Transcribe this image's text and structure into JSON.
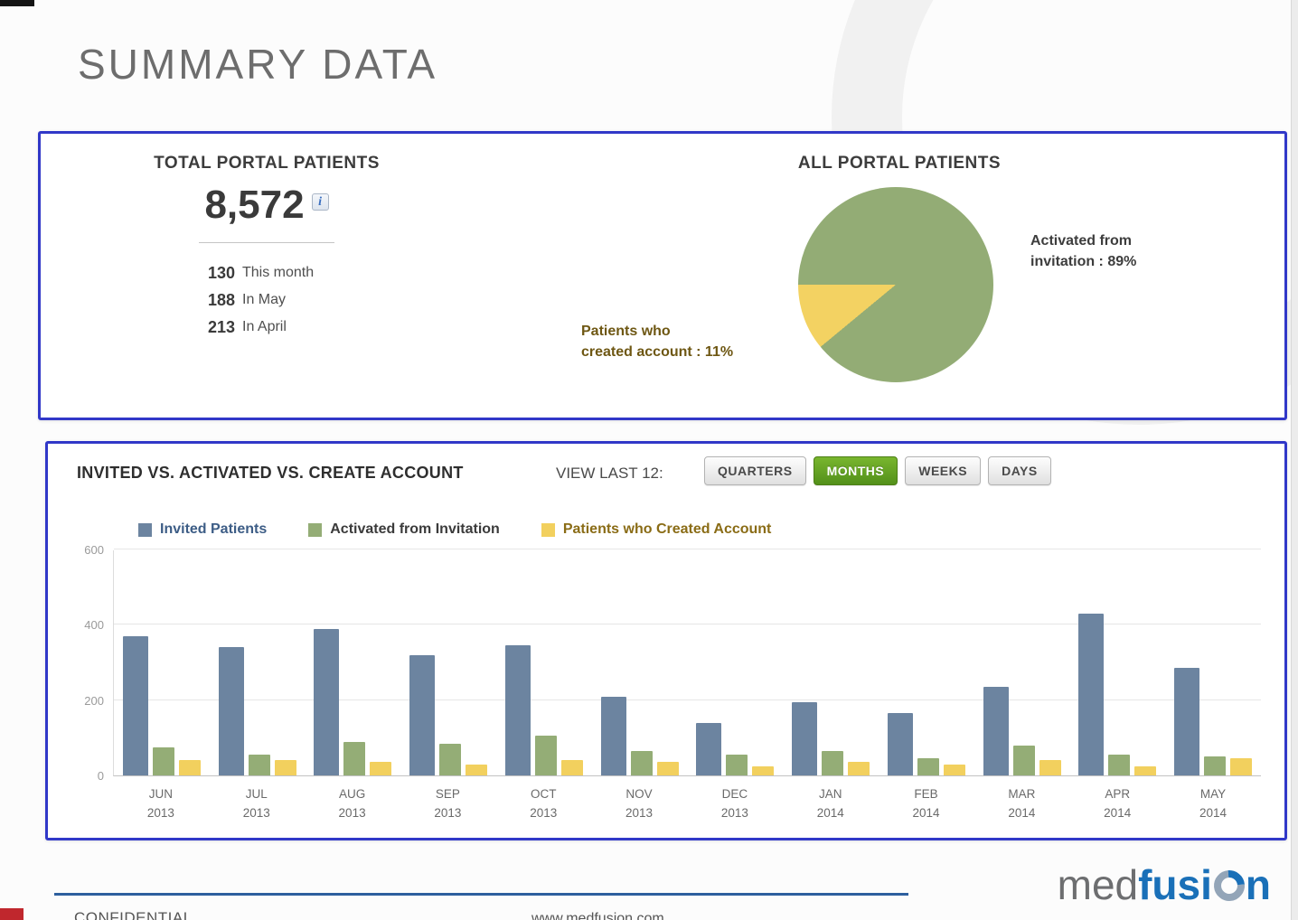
{
  "page": {
    "title": "SUMMARY DATA"
  },
  "summary": {
    "total_label": "TOTAL PORTAL PATIENTS",
    "total_value": "8,572",
    "info_icon": "i",
    "stats": [
      {
        "value": "130",
        "label": "This month"
      },
      {
        "value": "188",
        "label": "In May"
      },
      {
        "value": "213",
        "label": "In April"
      }
    ],
    "pie_title": "ALL PORTAL PATIENTS",
    "pie_right_label": "Activated from\ninvitation : 89%",
    "pie_left_label": "Patients who\ncreated account : 11%"
  },
  "invited_panel": {
    "title": "INVITED VS. ACTIVATED VS. CREATE ACCOUNT",
    "view_last_label": "VIEW LAST 12:",
    "buttons": [
      {
        "label": "QUARTERS",
        "active": false
      },
      {
        "label": "MONTHS",
        "active": true
      },
      {
        "label": "WEEKS",
        "active": false
      },
      {
        "label": "DAYS",
        "active": false
      }
    ]
  },
  "chart_data": [
    {
      "type": "pie",
      "title": "ALL PORTAL PATIENTS",
      "slices": [
        {
          "label": "Activated from invitation",
          "value": 89,
          "color": "#93ac75"
        },
        {
          "label": "Patients who created account",
          "value": 11,
          "color": "#f3d262"
        }
      ],
      "legend_position": "none"
    },
    {
      "type": "bar",
      "title": "INVITED VS. ACTIVATED VS. CREATE ACCOUNT",
      "categories": [
        "JUN 2013",
        "JUL 2013",
        "AUG 2013",
        "SEP 2013",
        "OCT 2013",
        "NOV 2013",
        "DEC 2013",
        "JAN 2014",
        "FEB 2014",
        "MAR 2014",
        "APR 2014",
        "MAY 2014"
      ],
      "series": [
        {
          "name": "Invited Patients",
          "color": "#6c84a0",
          "values": [
            370,
            340,
            390,
            320,
            345,
            210,
            140,
            195,
            165,
            235,
            430,
            285
          ]
        },
        {
          "name": "Activated from Invitation",
          "color": "#94ad76",
          "values": [
            75,
            55,
            90,
            85,
            105,
            65,
            55,
            65,
            45,
            80,
            55,
            50
          ]
        },
        {
          "name": "Patients who Created Account",
          "color": "#f2d05e",
          "values": [
            40,
            40,
            35,
            30,
            40,
            35,
            25,
            35,
            30,
            40,
            25,
            45
          ]
        }
      ],
      "xlabel": "",
      "ylabel": "",
      "ylim": [
        0,
        600
      ],
      "yticks": [
        0,
        200,
        400,
        600
      ],
      "grid": true,
      "legend_position": "top"
    }
  ],
  "footer": {
    "confidential": "CONFIDENTIAL",
    "url": "www.medfusion.com",
    "logo_med": "med",
    "logo_fusi": "fusi",
    "logo_n": "n"
  },
  "colors": {
    "panel_border": "#3138c8",
    "active_button_green": "#53901a",
    "footer_line_blue": "#2d5f9e",
    "logo_blue": "#1a70b8"
  }
}
